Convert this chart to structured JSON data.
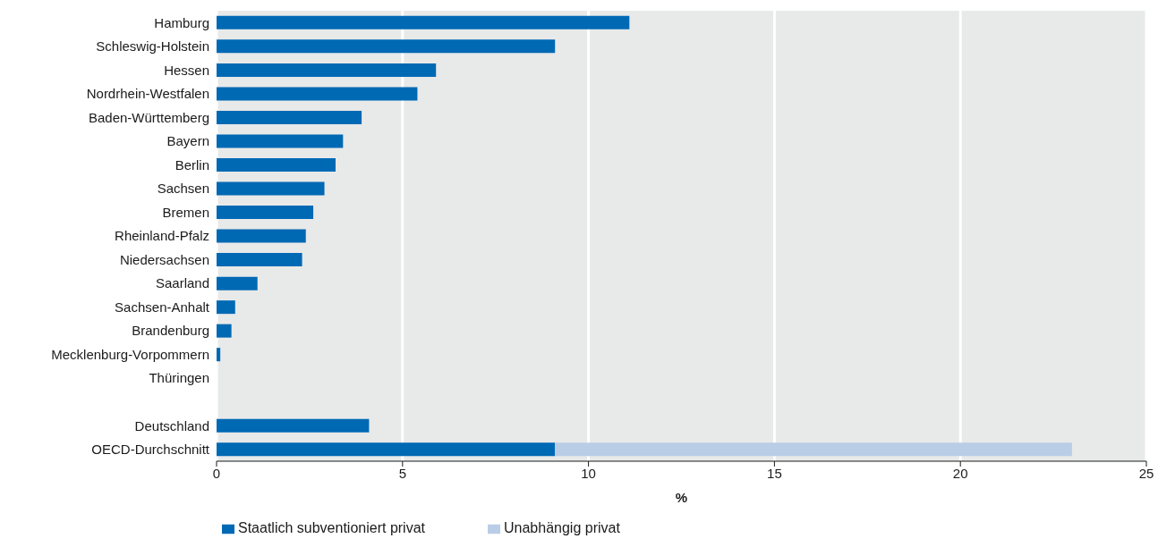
{
  "chart_data": {
    "type": "bar",
    "orientation": "horizontal",
    "stacked": true,
    "xlabel": "%",
    "categories": [
      "Hamburg",
      "Schleswig-Holstein",
      "Hessen",
      "Nordrhein-Westfalen",
      "Baden-Württemberg",
      "Bayern",
      "Berlin",
      "Sachsen",
      "Bremen",
      "Rheinland-Pfalz",
      "Niedersachsen",
      "Saarland",
      "Sachsen-Anhalt",
      "Brandenburg",
      "Mecklenburg-Vorpommern",
      "Thüringen",
      null,
      "Deutschland",
      "OECD-Durchschnitt"
    ],
    "series": [
      {
        "name": "Staatlich subventioniert privat",
        "color": "#0069b4",
        "values": [
          11.1,
          9.1,
          5.9,
          5.4,
          3.9,
          3.4,
          3.2,
          2.9,
          2.6,
          2.4,
          2.3,
          1.1,
          0.5,
          0.4,
          0.1,
          0,
          null,
          4.1,
          9.1
        ]
      },
      {
        "name": "Unabhängig privat",
        "color": "#b9cde6",
        "values": [
          null,
          null,
          null,
          null,
          null,
          null,
          null,
          null,
          null,
          null,
          null,
          null,
          null,
          null,
          null,
          null,
          null,
          null,
          13.9
        ]
      }
    ],
    "xlim": [
      0,
      25
    ],
    "xticks": [
      0,
      5,
      10,
      15,
      20,
      25
    ],
    "grid": "x",
    "legend": "bottom"
  }
}
